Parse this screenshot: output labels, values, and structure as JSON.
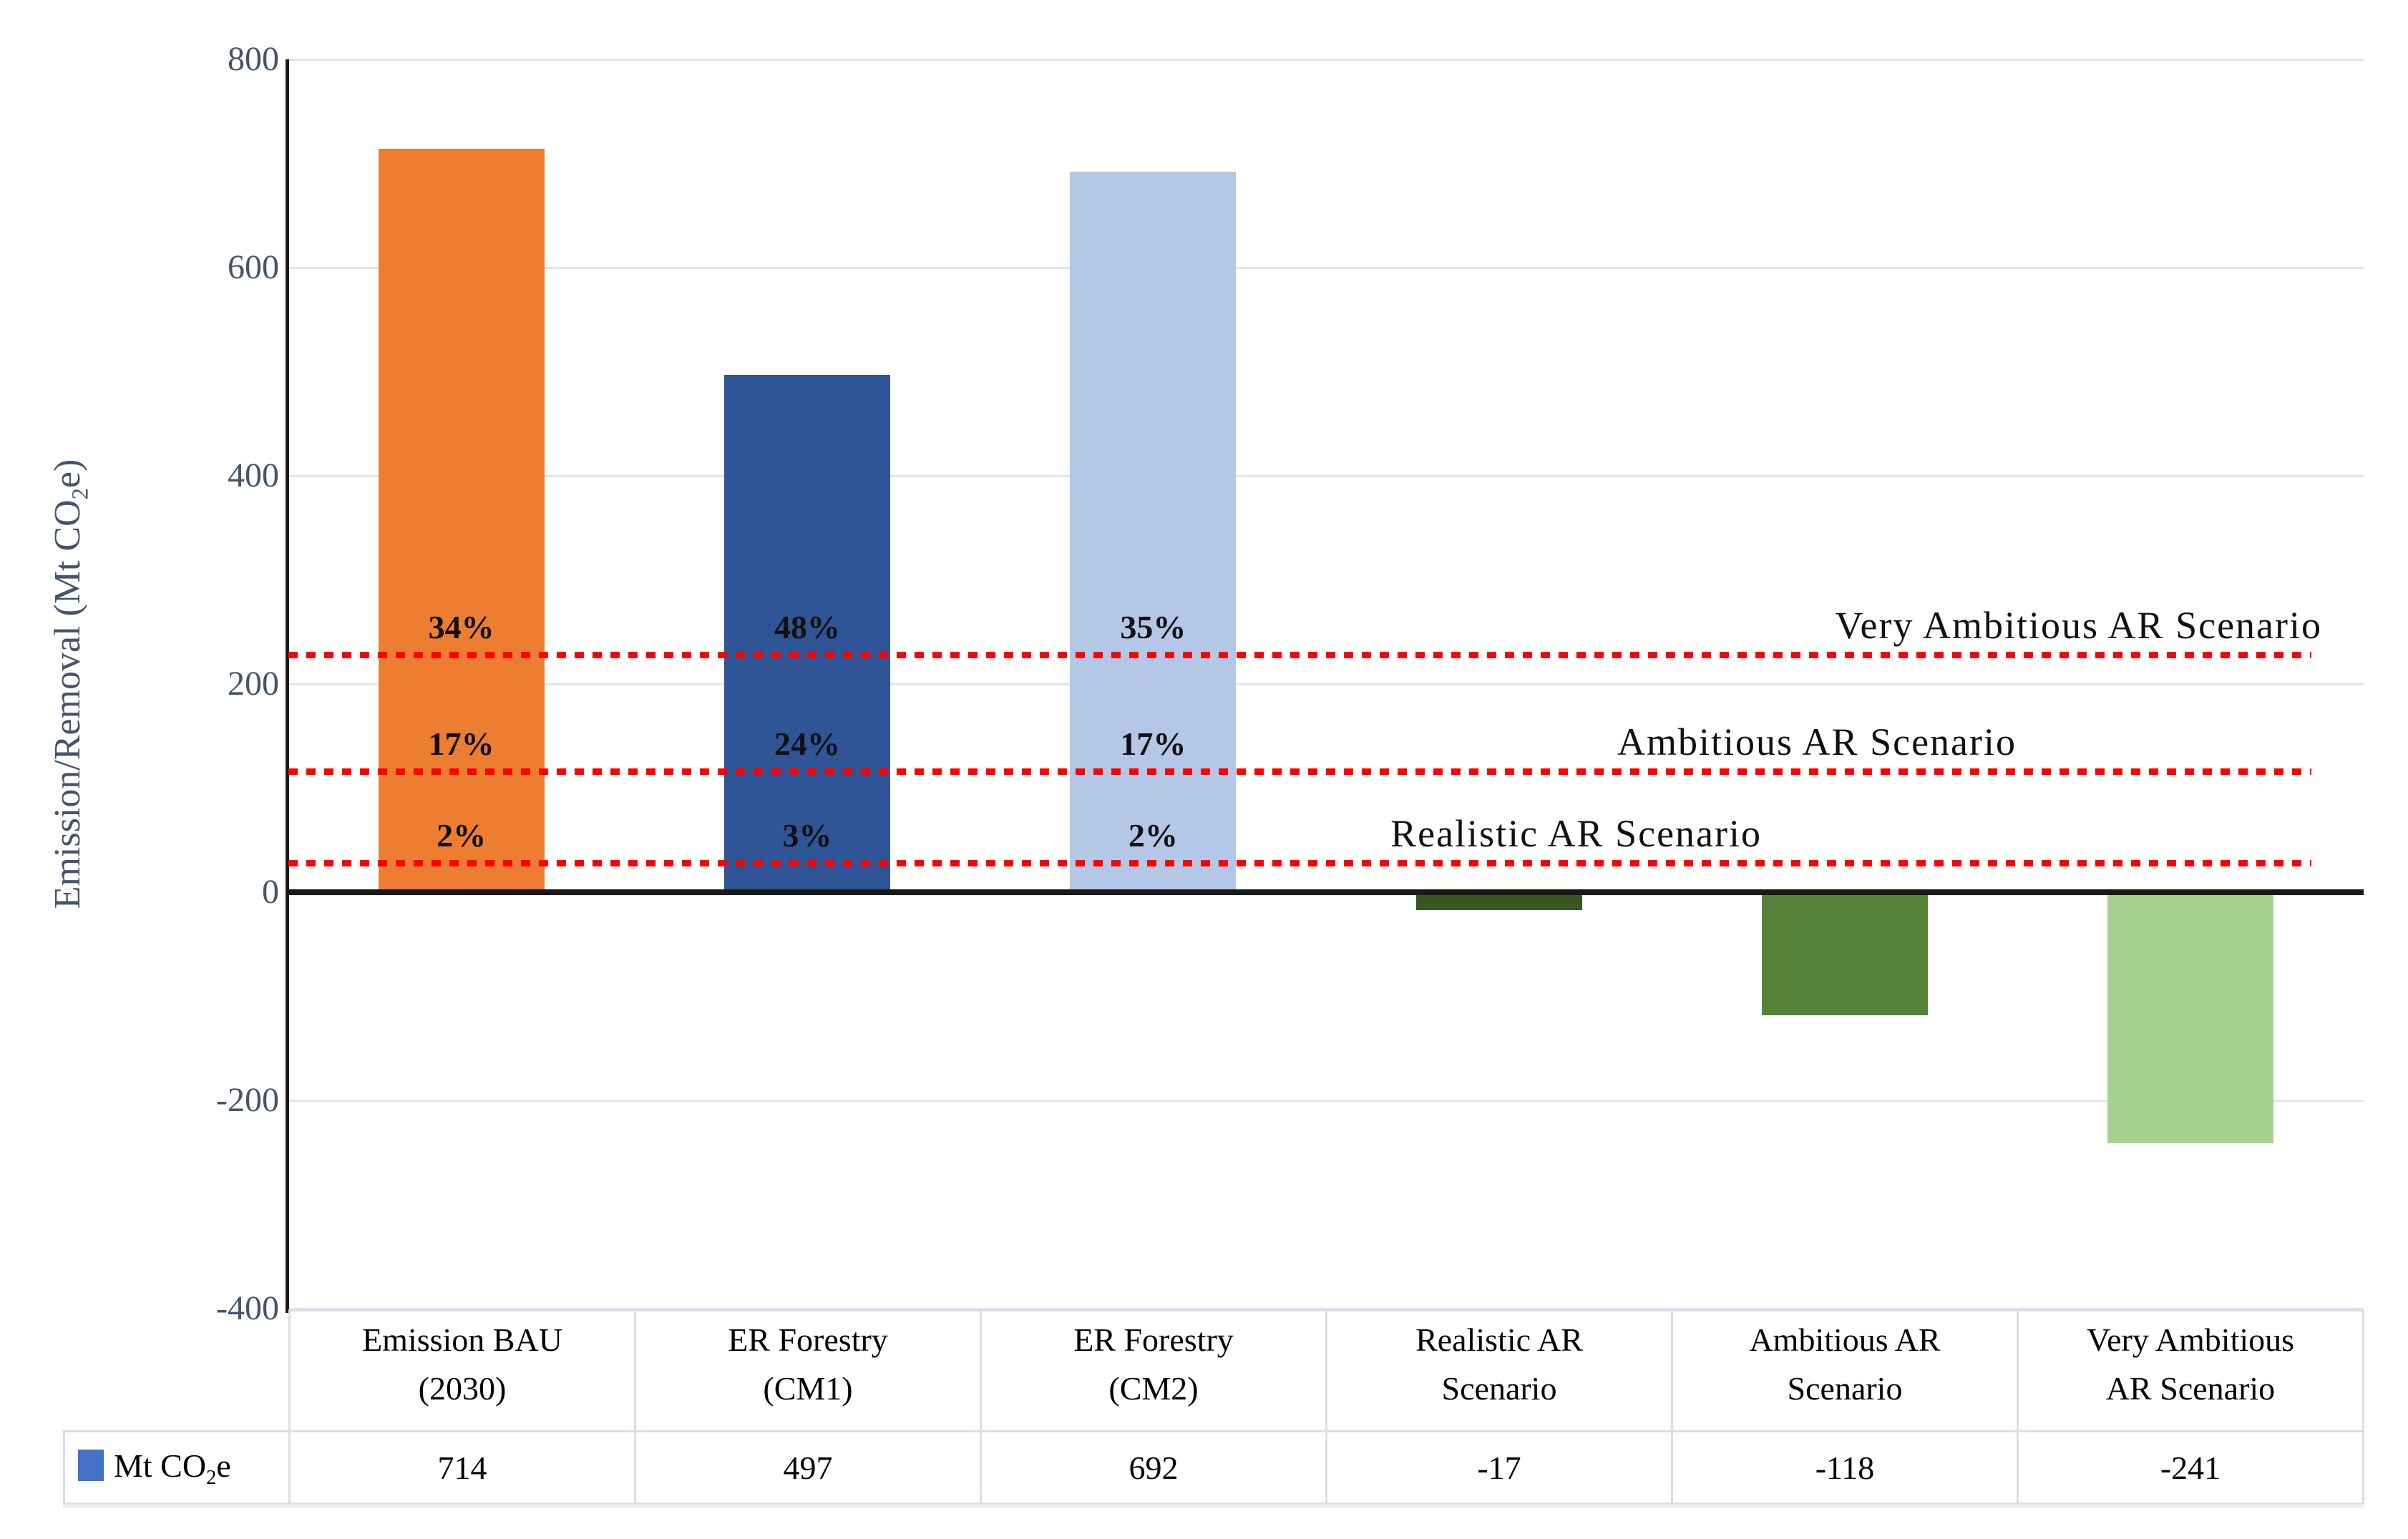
{
  "figure": {
    "y_axis": {
      "title_pre": "Emission/Removal (Mt CO",
      "title_sub": "2",
      "title_post": "e)"
    }
  },
  "chart_data": {
    "type": "bar",
    "title": "",
    "xlabel": "",
    "ylabel": "Emission/Removal (Mt CO2e)",
    "ylim": [
      -400,
      800
    ],
    "ytick_step": 200,
    "yticks": [
      800,
      600,
      400,
      200,
      0,
      -200,
      -400
    ],
    "grid": true,
    "legend_position": "bottom-table-left",
    "categories": [
      "Emission BAU (2030)",
      "ER Forestry (CM1)",
      "ER Forestry (CM2)",
      "Realistic AR Scenario",
      "Ambitious AR Scenario",
      "Very Ambitious AR Scenario"
    ],
    "categories_lines": [
      [
        "Emission BAU",
        "(2030)"
      ],
      [
        "ER Forestry",
        "(CM1)"
      ],
      [
        "ER Forestry",
        "(CM2)"
      ],
      [
        "Realistic AR",
        "Scenario"
      ],
      [
        "Ambitious AR",
        "Scenario"
      ],
      [
        "Very Ambitious",
        "AR Scenario"
      ]
    ],
    "series": [
      {
        "name": "Mt CO2e",
        "values": [
          714,
          497,
          692,
          -17,
          -118,
          -241
        ]
      }
    ],
    "bar_colors": [
      "#ED7D31",
      "#2F5597",
      "#B4C7E7",
      "#375623",
      "#538135",
      "#A9D18E"
    ],
    "bar_pct_labels": [
      [
        "34%",
        "17%",
        "2%"
      ],
      [
        "48%",
        "24%",
        "3%"
      ],
      [
        "35%",
        "17%",
        "2%"
      ],
      [],
      [],
      []
    ],
    "reference_lines": [
      {
        "label": "Very Ambitious AR Scenario",
        "approx_value": 228,
        "color": "#FF0000",
        "style": "dashed"
      },
      {
        "label": "Ambitious AR Scenario",
        "approx_value": 116,
        "color": "#FF0000",
        "style": "dashed"
      },
      {
        "label": "Realistic AR Scenario",
        "approx_value": 28,
        "color": "#FF0000",
        "style": "dashed"
      }
    ],
    "legend": {
      "swatch_color": "#4472C4",
      "label_pre": "Mt CO",
      "label_sub": "2",
      "label_post": "e"
    },
    "table": {
      "row_values_text": [
        "714",
        "497",
        "692",
        "-17",
        "-118",
        "-241"
      ]
    },
    "colors": {
      "axis": "#1a1a1a",
      "gridline": "#DFE5EE",
      "tick_label": "#44546A",
      "reference_line": "#FF0000"
    }
  }
}
